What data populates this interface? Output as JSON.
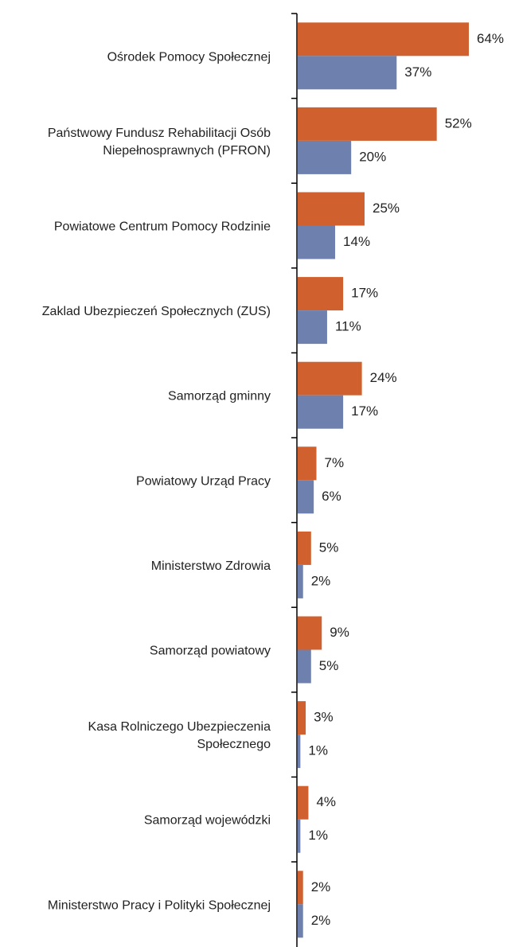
{
  "chart_data": {
    "type": "barh",
    "categories": [
      "Ośrodek Pomocy Społecznej",
      "Państwowy Fundusz Rehabilitacji Osób\nNiepełnosprawnych (PFRON)",
      "Powiatowe Centrum Pomocy Rodzinie",
      "Zaklad Ubezpieczeń Społecznych (ZUS)",
      "Samorząd gminny",
      "Powiatowy Urząd Pracy",
      "Ministerstwo Zdrowia",
      "Samorząd powiatowy",
      "Kasa Rolniczego Ubezpieczenia\nSpołecznego",
      "Samorząd wojewódzki",
      "Ministerstwo Pracy i Polityki Społecznej"
    ],
    "series": [
      {
        "color": "#d0602e",
        "values": [
          64,
          52,
          25,
          17,
          24,
          7,
          5,
          9,
          3,
          4,
          2
        ],
        "value_labels": [
          "64%",
          "52%",
          "25%",
          "17%",
          "24%",
          "7%",
          "5%",
          "9%",
          "3%",
          "4%",
          "2%"
        ]
      },
      {
        "color": "#6e80ae",
        "values": [
          37,
          20,
          14,
          11,
          17,
          6,
          2,
          5,
          1,
          1,
          2
        ],
        "value_labels": [
          "37%",
          "20%",
          "14%",
          "11%",
          "17%",
          "6%",
          "2%",
          "5%",
          "1%",
          "1%",
          "2%"
        ]
      }
    ],
    "xlim": [
      0,
      64
    ]
  }
}
